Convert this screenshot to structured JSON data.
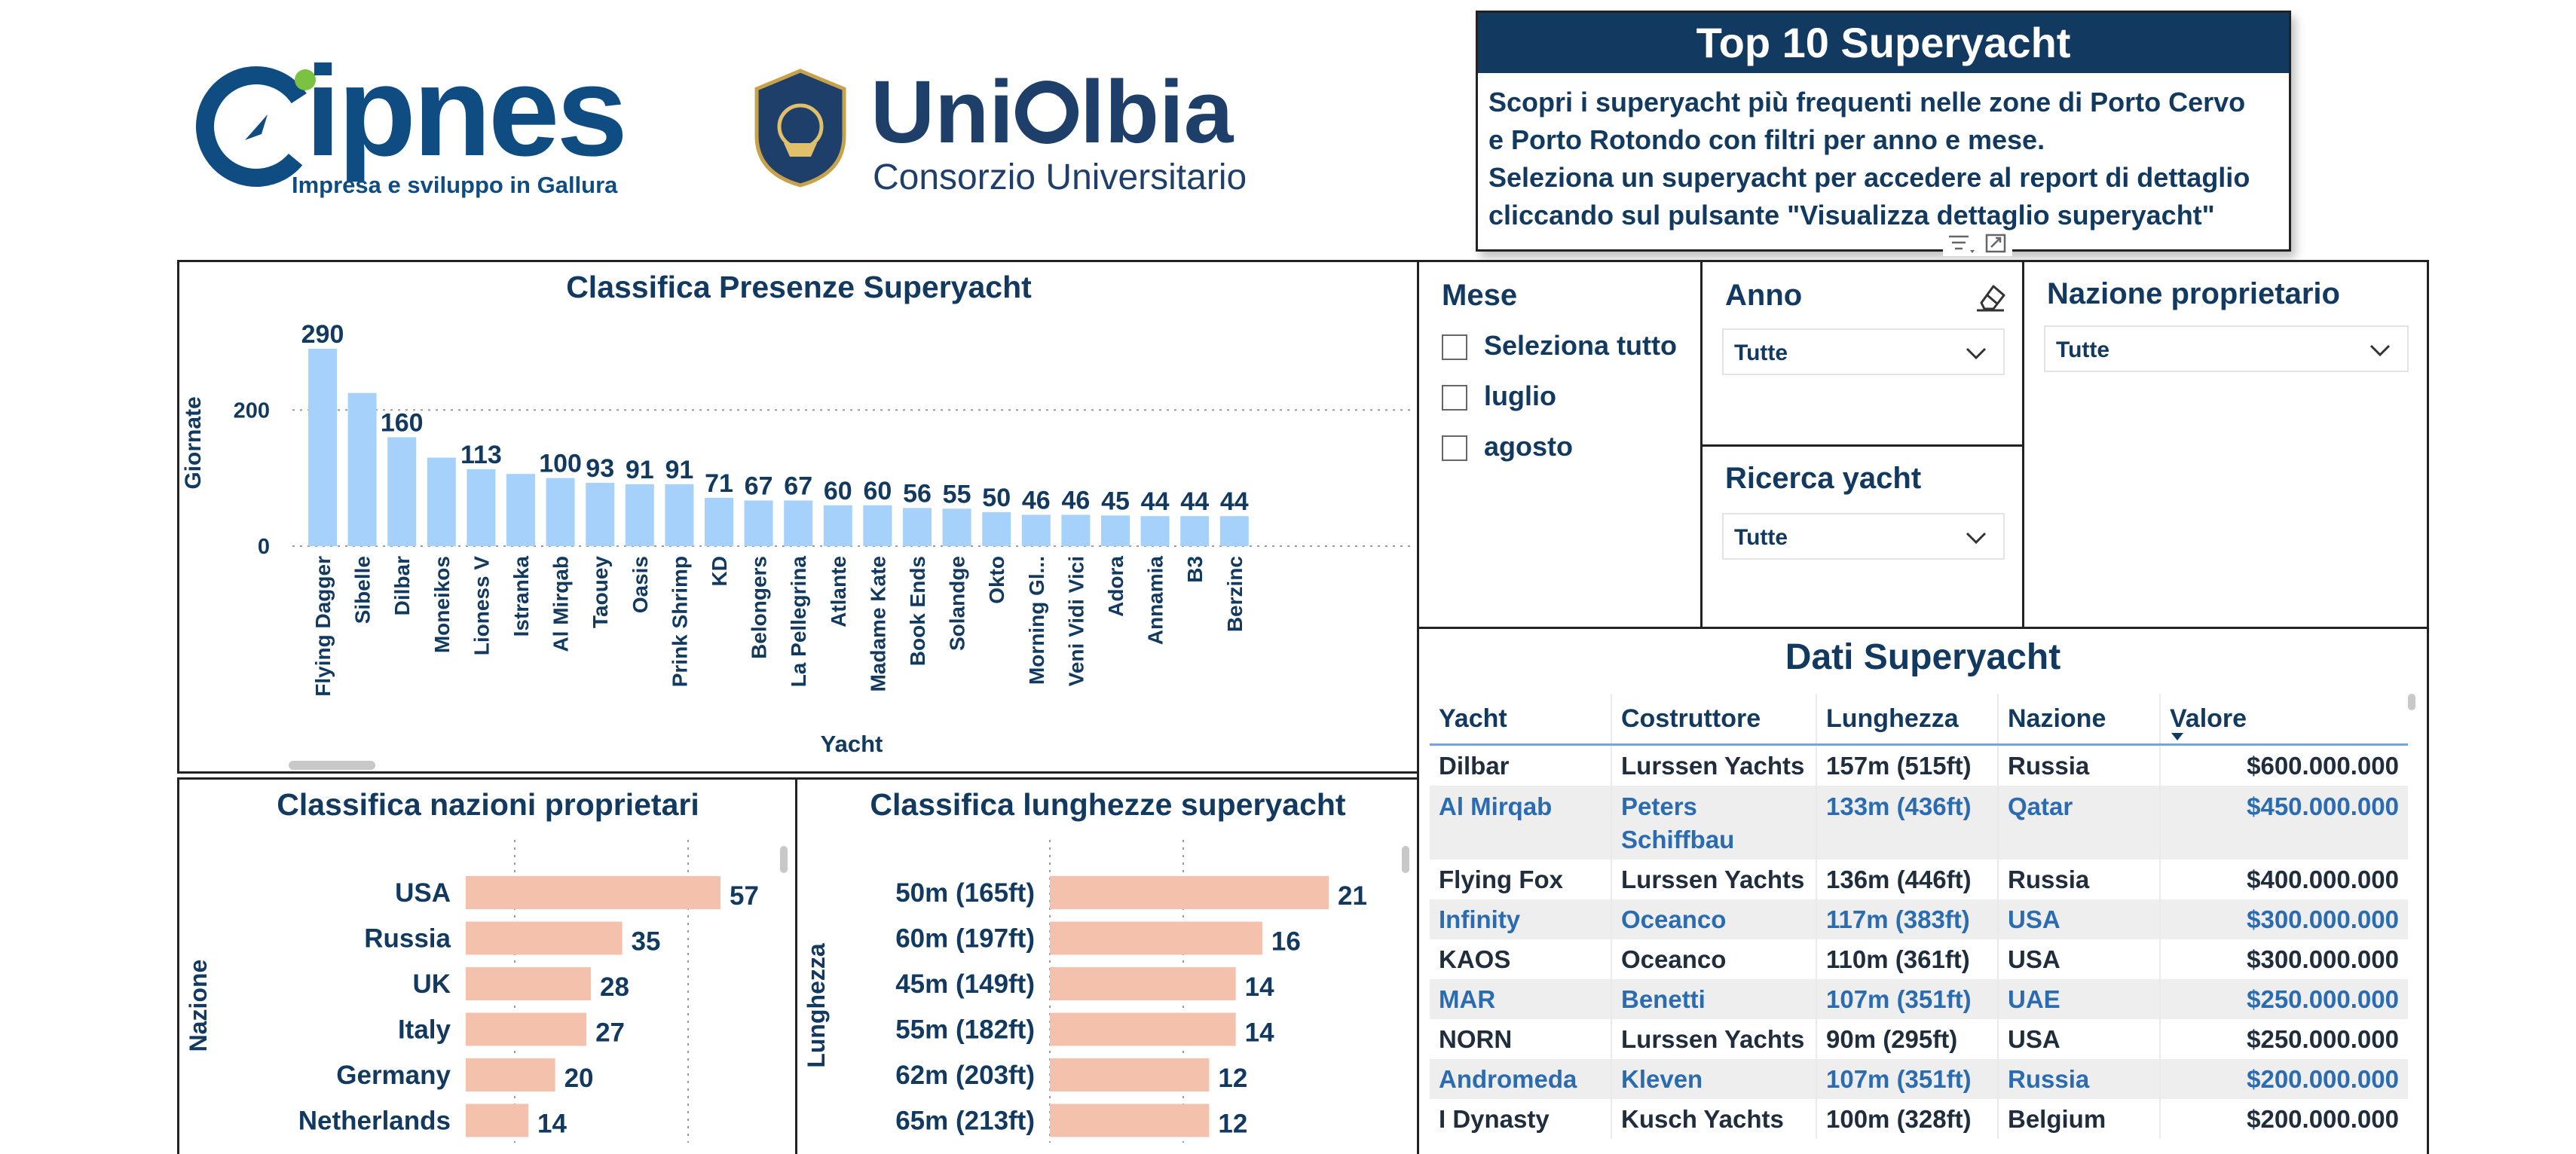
{
  "logos": {
    "cipnes": {
      "word": "ipnes",
      "letter": "c",
      "tagline": "Impresa e sviluppo in Gallura"
    },
    "uniolbia": {
      "word_prefix": "Uni",
      "word_suffix": "lbia",
      "subtitle": "Consorzio Universitario"
    }
  },
  "info_box": {
    "title": "Top 10 Superyacht",
    "lines": [
      "Scopri i superyacht più frequenti nelle zone di Porto Cervo",
      "e Porto Rotondo con filtri per anno e mese.",
      "Seleziona un superyacht per accedere al report di dettaglio",
      "cliccando sul pulsante \"Visualizza dettaglio superyacht\""
    ]
  },
  "filters": {
    "mese": {
      "title": "Mese",
      "options": [
        "Seleziona tutto",
        "luglio",
        "agosto"
      ]
    },
    "anno": {
      "title": "Anno",
      "value": "Tutte"
    },
    "nazione": {
      "title": "Nazione proprietario",
      "value": "Tutte"
    },
    "ricerca": {
      "title": "Ricerca yacht",
      "value": "Tutte"
    }
  },
  "colors": {
    "accent": "#12395f",
    "bar_blue": "#a6d1fb",
    "bar_salmon": "#f4c2ac",
    "panel_border": "#222222"
  },
  "chart_data": [
    {
      "type": "bar",
      "title": "Classifica Presenze Superyacht",
      "xlabel": "Yacht",
      "ylabel": "Giornate",
      "yticks": [
        0,
        200
      ],
      "ylim": [
        0,
        290
      ],
      "grid": true,
      "categories": [
        "Flying Dagger",
        "Sibelle",
        "Dilbar",
        "Moneikos",
        "Lioness V",
        "Istranka",
        "Al Mirqab",
        "Taouey",
        "Oasis",
        "Prink Shrimp",
        "KD",
        "Belongers",
        "La Pellegrina",
        "Atlante",
        "Madame Kate",
        "Book Ends",
        "Solandge",
        "Okto",
        "Morning Gl...",
        "Veni Vidi Vici",
        "Adora",
        "Annamia",
        "B3",
        "Berzinc"
      ],
      "values": [
        290,
        225,
        160,
        130,
        113,
        106,
        100,
        93,
        91,
        91,
        71,
        67,
        67,
        60,
        60,
        56,
        55,
        50,
        46,
        46,
        45,
        44,
        44,
        44
      ],
      "labeled": [
        true,
        false,
        true,
        false,
        true,
        false,
        true,
        true,
        true,
        true,
        true,
        true,
        true,
        true,
        true,
        true,
        true,
        true,
        true,
        true,
        true,
        true,
        true,
        true
      ]
    },
    {
      "type": "bar",
      "orientation": "horizontal",
      "title": "Classifica nazioni proprietari",
      "ylabel": "Nazione",
      "categories": [
        "USA",
        "Russia",
        "UK",
        "Italy",
        "Germany",
        "Netherlands"
      ],
      "values": [
        57,
        35,
        28,
        27,
        20,
        14
      ]
    },
    {
      "type": "bar",
      "orientation": "horizontal",
      "title": "Classifica lunghezze superyacht",
      "ylabel": "Lunghezza",
      "categories": [
        "50m (165ft)",
        "60m (197ft)",
        "45m (149ft)",
        "55m (182ft)",
        "62m (203ft)",
        "65m (213ft)"
      ],
      "values": [
        21,
        16,
        14,
        14,
        12,
        12
      ]
    },
    {
      "type": "table",
      "title": "Dati Superyacht",
      "columns": [
        "Yacht",
        "Costruttore",
        "Lunghezza",
        "Nazione",
        "Valore"
      ],
      "rows": [
        [
          "Dilbar",
          "Lurssen Yachts",
          "157m (515ft)",
          "Russia",
          "$600.000.000"
        ],
        [
          "Al Mirqab",
          "Peters Schiffbau",
          "133m (436ft)",
          "Qatar",
          "$450.000.000"
        ],
        [
          "Flying Fox",
          "Lurssen Yachts",
          "136m (446ft)",
          "Russia",
          "$400.000.000"
        ],
        [
          "Infinity",
          "Oceanco",
          "117m (383ft)",
          "USA",
          "$300.000.000"
        ],
        [
          "KAOS",
          "Oceanco",
          "110m (361ft)",
          "USA",
          "$300.000.000"
        ],
        [
          "MAR",
          "Benetti",
          "107m (351ft)",
          "UAE",
          "$250.000.000"
        ],
        [
          "NORN",
          "Lurssen Yachts",
          "90m (295ft)",
          "USA",
          "$250.000.000"
        ],
        [
          "Andromeda",
          "Kleven",
          "107m (351ft)",
          "Russia",
          "$200.000.000"
        ],
        [
          "I Dynasty",
          "Kusch Yachts",
          "100m (328ft)",
          "Belgium",
          "$200.000.000"
        ]
      ]
    }
  ]
}
